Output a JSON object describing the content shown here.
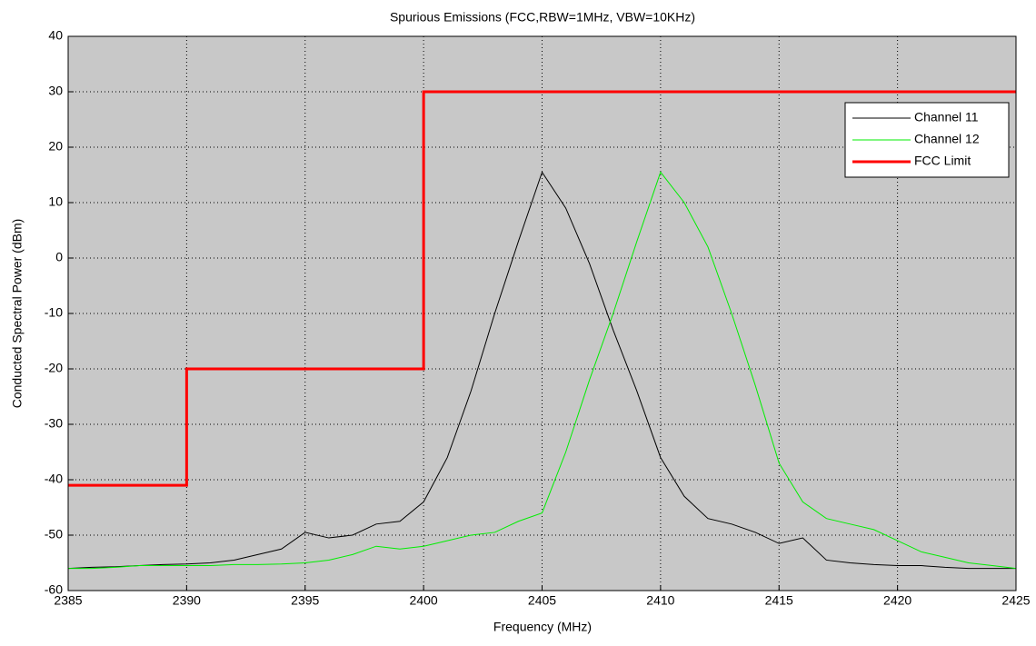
{
  "chart_data": {
    "type": "line",
    "title": "Spurious Emissions (FCC,RBW=1MHz, VBW=10KHz)",
    "x_label": "Frequency (MHz)",
    "y_label": "Conducted Spectral Power (dBm)",
    "xlim": [
      2385,
      2425
    ],
    "xticks": [
      2385,
      2390,
      2395,
      2400,
      2405,
      2410,
      2415,
      2420,
      2425
    ],
    "ylim": [
      -60,
      40
    ],
    "yticks": [
      -60,
      -50,
      -40,
      -30,
      -20,
      -10,
      0,
      10,
      20,
      30,
      40
    ],
    "grid": true,
    "legend": "upper right",
    "series": [
      {
        "name": "Channel 11",
        "color": "#000000",
        "x": [
          2385,
          2386,
          2387,
          2388,
          2389,
          2390,
          2391,
          2392,
          2393,
          2394,
          2395,
          2396,
          2397,
          2398,
          2399,
          2400,
          2401,
          2402,
          2403,
          2404,
          2405,
          2406,
          2407,
          2408,
          2409,
          2410,
          2411,
          2412,
          2413,
          2414,
          2415,
          2416,
          2417,
          2418,
          2419,
          2420,
          2421,
          2422,
          2423,
          2424,
          2425
        ],
        "values": [
          -56,
          -55.8,
          -55.7,
          -55.5,
          -55.3,
          -55.2,
          -55,
          -54.5,
          -53.5,
          -52.5,
          -49.5,
          -50.5,
          -50,
          -48,
          -47.5,
          -44,
          -36,
          -24,
          -10,
          3,
          15.5,
          9,
          -1,
          -13,
          -24,
          -36,
          -43,
          -47,
          -48,
          -49.5,
          -51.5,
          -50.5,
          -54.5,
          -55,
          -55.3,
          -55.5,
          -55.5,
          -55.8,
          -56,
          -56,
          -56
        ]
      },
      {
        "name": "Channel 12",
        "color": "#00ee00",
        "x": [
          2385,
          2386,
          2387,
          2388,
          2389,
          2390,
          2391,
          2392,
          2393,
          2394,
          2395,
          2396,
          2397,
          2398,
          2399,
          2400,
          2401,
          2402,
          2403,
          2404,
          2405,
          2406,
          2407,
          2408,
          2409,
          2410,
          2411,
          2412,
          2413,
          2414,
          2415,
          2416,
          2417,
          2418,
          2419,
          2420,
          2421,
          2422,
          2423,
          2424,
          2425
        ],
        "values": [
          -56,
          -56,
          -55.8,
          -55.5,
          -55.5,
          -55.5,
          -55.5,
          -55.3,
          -55.3,
          -55.2,
          -55,
          -54.5,
          -53.5,
          -52,
          -52.5,
          -52,
          -51,
          -50,
          -49.5,
          -47.5,
          -46,
          -35,
          -22,
          -10,
          3,
          15.5,
          10,
          2,
          -10,
          -23,
          -37,
          -44,
          -47,
          -48,
          -49,
          -51,
          -53,
          -54,
          -55,
          -55.5,
          -56
        ]
      },
      {
        "name": "FCC Limit",
        "color": "#ff0000",
        "x": [
          2385,
          2390,
          2390,
          2400,
          2400,
          2425
        ],
        "values": [
          -41,
          -41,
          -20,
          -20,
          30,
          30
        ]
      }
    ]
  }
}
